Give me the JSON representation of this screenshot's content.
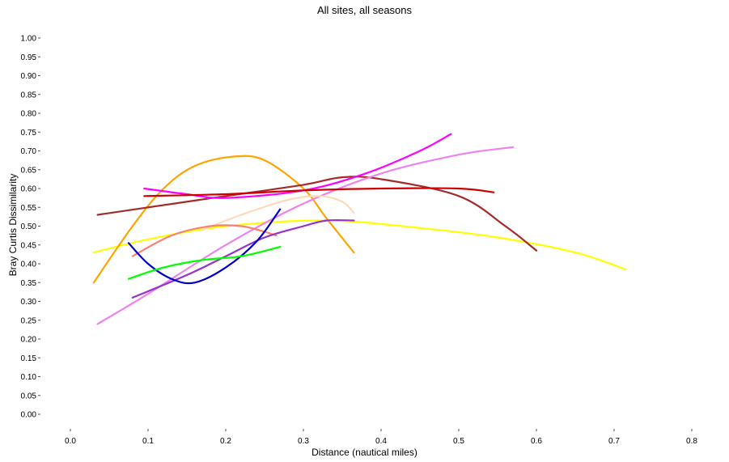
{
  "chart_data": {
    "type": "line",
    "title": "All sites, all seasons",
    "xlabel": "Distance (nautical miles)",
    "ylabel": "Bray Curtis Dissimilarity",
    "xlim": [
      0,
      0.8
    ],
    "ylim": [
      0,
      1.0
    ],
    "x_ticks": [
      "0.0",
      "0.1",
      "0.2",
      "0.3",
      "0.4",
      "0.5",
      "0.6",
      "0.7",
      "0.8"
    ],
    "y_ticks": [
      "0.00",
      "0.05",
      "0.10",
      "0.15",
      "0.20",
      "0.25",
      "0.30",
      "0.35",
      "0.40",
      "0.45",
      "0.50",
      "0.55",
      "0.60",
      "0.65",
      "0.70",
      "0.75",
      "0.80",
      "0.85",
      "0.90",
      "0.95",
      "1.00"
    ],
    "grid": false,
    "legend": "none",
    "series": [
      {
        "color": "#FFFF00",
        "x": [
          0.03,
          0.1,
          0.2,
          0.33,
          0.45,
          0.55,
          0.65,
          0.715
        ],
        "y": [
          0.43,
          0.465,
          0.5,
          0.515,
          0.495,
          0.47,
          0.43,
          0.385
        ]
      },
      {
        "color": "#FFA500",
        "x": [
          0.03,
          0.08,
          0.12,
          0.16,
          0.21,
          0.25,
          0.3,
          0.33,
          0.365
        ],
        "y": [
          0.35,
          0.5,
          0.6,
          0.66,
          0.685,
          0.675,
          0.6,
          0.52,
          0.43
        ]
      },
      {
        "color": "#A52A2A",
        "x": [
          0.035,
          0.1,
          0.2,
          0.3,
          0.35,
          0.4,
          0.5,
          0.56,
          0.6
        ],
        "y": [
          0.53,
          0.55,
          0.58,
          0.61,
          0.63,
          0.625,
          0.58,
          0.5,
          0.435
        ]
      },
      {
        "color": "#FF00FF",
        "x": [
          0.095,
          0.15,
          0.2,
          0.3,
          0.38,
          0.45,
          0.49
        ],
        "y": [
          0.6,
          0.585,
          0.575,
          0.595,
          0.64,
          0.7,
          0.745
        ]
      },
      {
        "color": "#EE82EE",
        "x": [
          0.035,
          0.1,
          0.2,
          0.3,
          0.4,
          0.5,
          0.57
        ],
        "y": [
          0.24,
          0.32,
          0.45,
          0.56,
          0.64,
          0.69,
          0.71
        ]
      },
      {
        "color": "#CC0000",
        "x": [
          0.095,
          0.2,
          0.3,
          0.4,
          0.5,
          0.545
        ],
        "y": [
          0.58,
          0.585,
          0.595,
          0.6,
          0.6,
          0.59
        ]
      },
      {
        "color": "#FFDAB9",
        "x": [
          0.17,
          0.22,
          0.28,
          0.32,
          0.35,
          0.365
        ],
        "y": [
          0.49,
          0.53,
          0.57,
          0.58,
          0.565,
          0.535
        ]
      },
      {
        "color": "#FA8072",
        "x": [
          0.08,
          0.13,
          0.18,
          0.22,
          0.25,
          0.265
        ],
        "y": [
          0.42,
          0.475,
          0.5,
          0.5,
          0.485,
          0.475
        ]
      },
      {
        "color": "#9932CC",
        "x": [
          0.08,
          0.15,
          0.2,
          0.25,
          0.3,
          0.33,
          0.365
        ],
        "y": [
          0.31,
          0.37,
          0.42,
          0.47,
          0.5,
          0.515,
          0.515
        ]
      },
      {
        "color": "#0000CD",
        "x": [
          0.075,
          0.1,
          0.13,
          0.16,
          0.2,
          0.24,
          0.27
        ],
        "y": [
          0.455,
          0.4,
          0.36,
          0.35,
          0.39,
          0.46,
          0.545
        ]
      },
      {
        "color": "#00FF00",
        "x": [
          0.075,
          0.12,
          0.17,
          0.22,
          0.27
        ],
        "y": [
          0.36,
          0.39,
          0.41,
          0.42,
          0.445
        ]
      }
    ]
  }
}
